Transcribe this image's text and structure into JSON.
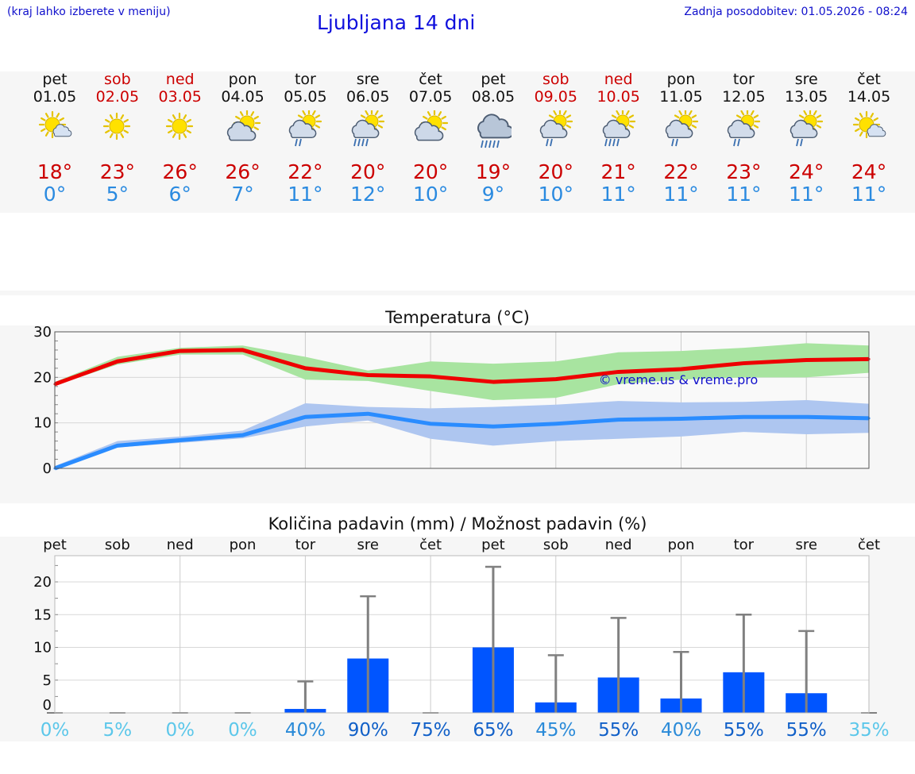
{
  "header": {
    "hint": "(kraj lahko izberete v meniju)",
    "title": "Ljubljana 14 dni",
    "updated": "Zadnja posodobitev: 01.05.2026 - 08:24"
  },
  "days": [
    {
      "name": "pet",
      "date": "01.05",
      "weekend": false,
      "icon": "sun-cloud-icon",
      "max": "18°",
      "min": "0°"
    },
    {
      "name": "sob",
      "date": "02.05",
      "weekend": true,
      "icon": "sun-icon",
      "max": "23°",
      "min": "5°"
    },
    {
      "name": "ned",
      "date": "03.05",
      "weekend": true,
      "icon": "sun-icon",
      "max": "26°",
      "min": "6°"
    },
    {
      "name": "pon",
      "date": "04.05",
      "weekend": false,
      "icon": "partly-cloudy-icon",
      "max": "26°",
      "min": "7°"
    },
    {
      "name": "tor",
      "date": "05.05",
      "weekend": false,
      "icon": "sun-cloud-rain-icon",
      "max": "22°",
      "min": "11°"
    },
    {
      "name": "sre",
      "date": "06.05",
      "weekend": false,
      "icon": "sun-cloud-heavy-rain-icon",
      "max": "20°",
      "min": "12°"
    },
    {
      "name": "čet",
      "date": "07.05",
      "weekend": false,
      "icon": "partly-cloudy-icon",
      "max": "20°",
      "min": "10°"
    },
    {
      "name": "pet",
      "date": "08.05",
      "weekend": false,
      "icon": "cloud-heavy-rain-icon",
      "max": "19°",
      "min": "9°"
    },
    {
      "name": "sob",
      "date": "09.05",
      "weekend": true,
      "icon": "sun-cloud-rain-icon",
      "max": "20°",
      "min": "10°"
    },
    {
      "name": "ned",
      "date": "10.05",
      "weekend": true,
      "icon": "sun-cloud-heavy-rain-icon",
      "max": "21°",
      "min": "11°"
    },
    {
      "name": "pon",
      "date": "11.05",
      "weekend": false,
      "icon": "sun-cloud-rain-icon",
      "max": "22°",
      "min": "11°"
    },
    {
      "name": "tor",
      "date": "12.05",
      "weekend": false,
      "icon": "sun-cloud-rain-icon",
      "max": "23°",
      "min": "11°"
    },
    {
      "name": "sre",
      "date": "13.05",
      "weekend": false,
      "icon": "sun-cloud-rain-icon",
      "max": "24°",
      "min": "11°"
    },
    {
      "name": "čet",
      "date": "14.05",
      "weekend": false,
      "icon": "sun-cloud-icon",
      "max": "24°",
      "min": "11°"
    }
  ],
  "colors": {
    "max_line": "#ee0000",
    "max_band": "#a8e4a0",
    "min_line": "#2a8cff",
    "min_band": "#aec6f0",
    "precip_bar": "#0055ff",
    "whisker": "#808080",
    "watermark": "#1010cc"
  },
  "chart_data": [
    {
      "type": "line",
      "title": "Temperatura (°C)",
      "watermark": "© vreme.us & vreme.pro",
      "x": [
        "pet",
        "sob",
        "ned",
        "pon",
        "tor",
        "sre",
        "čet",
        "pet",
        "sob",
        "ned",
        "pon",
        "tor",
        "sre",
        "čet"
      ],
      "ylim": [
        0,
        30
      ],
      "yticks": [
        0,
        10,
        20,
        30
      ],
      "grid": true,
      "series": [
        {
          "role": "max",
          "values": [
            18.5,
            23.5,
            25.8,
            26,
            22,
            20.5,
            20.2,
            19,
            19.6,
            21.2,
            21.8,
            23.1,
            23.8,
            24
          ],
          "band_low": [
            18.2,
            22.8,
            25,
            25,
            19.5,
            19.2,
            17,
            15,
            15.5,
            18.5,
            19.5,
            20,
            20,
            21
          ],
          "band_high": [
            19,
            24.5,
            26.5,
            27,
            24.5,
            21.5,
            23.5,
            23,
            23.5,
            25.5,
            25.8,
            26.5,
            27.5,
            27
          ]
        },
        {
          "role": "min",
          "values": [
            0,
            5,
            6.2,
            7.3,
            11.3,
            12,
            9.8,
            9.2,
            9.8,
            10.7,
            10.9,
            11.3,
            11.3,
            11
          ],
          "band_low": [
            -0.3,
            4.6,
            5.6,
            6.6,
            9.2,
            10.5,
            6.5,
            5,
            6,
            6.5,
            7,
            8,
            7.5,
            7.8
          ],
          "band_high": [
            0.5,
            6,
            7,
            8.3,
            14.3,
            13.5,
            13.2,
            13.5,
            14,
            14.8,
            14.5,
            14.6,
            15,
            14.2
          ]
        }
      ]
    },
    {
      "type": "bar",
      "title": "Količina padavin (mm) / Možnost padavin (%)",
      "categories": [
        "pet",
        "sob",
        "ned",
        "pon",
        "tor",
        "sre",
        "čet",
        "pet",
        "sob",
        "ned",
        "pon",
        "tor",
        "sre",
        "čet"
      ],
      "ylim": [
        0,
        24
      ],
      "yticks": [
        0,
        5,
        10,
        15,
        20
      ],
      "grid": true,
      "values": [
        0,
        0,
        0,
        0,
        0.6,
        8.3,
        0,
        10,
        1.6,
        5.4,
        2.2,
        6.2,
        3,
        0
      ],
      "whisker_max": [
        0,
        0,
        0,
        0,
        4.8,
        17.8,
        0,
        22.3,
        8.8,
        14.5,
        9.3,
        15,
        12.5,
        0
      ],
      "probability": [
        "0%",
        "5%",
        "0%",
        "0%",
        "40%",
        "90%",
        "75%",
        "65%",
        "45%",
        "55%",
        "40%",
        "55%",
        "55%",
        "35%"
      ]
    }
  ]
}
